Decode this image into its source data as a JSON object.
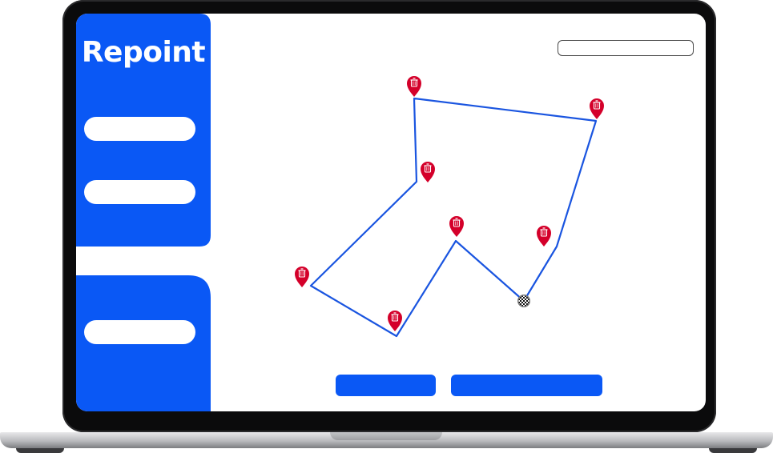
{
  "app": {
    "brand": "Repoint",
    "accent_color": "#0a58f5"
  },
  "sidebar": {
    "items": [
      {
        "label": "",
        "active": false
      },
      {
        "label": "",
        "active": false
      },
      {
        "label": "",
        "active": true
      },
      {
        "label": "",
        "active": false
      }
    ]
  },
  "search": {
    "value": "",
    "placeholder": ""
  },
  "map": {
    "route_color": "#1a55e0",
    "marker_color": "#d4002a",
    "marker_icon": "trash-bin-icon",
    "end_icon": "checkered-flag-icon",
    "stops": 7
  },
  "actions": [
    {
      "label": ""
    },
    {
      "label": ""
    }
  ]
}
